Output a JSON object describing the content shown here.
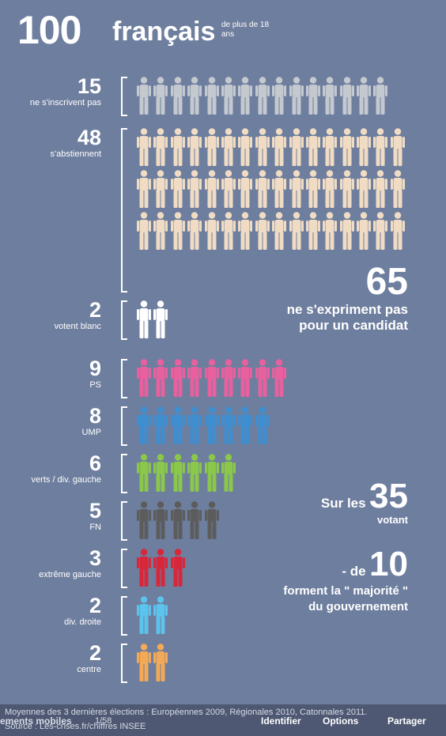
{
  "title": {
    "number": "100",
    "word": "français",
    "subtitle": "de plus de 18 ans"
  },
  "groups": [
    {
      "count": "15",
      "label": "ne s'inscrivent pas",
      "n": 15,
      "color": "#c4c8cf"
    },
    {
      "count": "48",
      "label": "s'abstiennent",
      "n": 48,
      "color": "#f0dcc4"
    },
    {
      "count": "2",
      "label": "votent blanc",
      "n": 2,
      "color": "#ffffff"
    },
    {
      "count": "9",
      "label": "PS",
      "n": 9,
      "color": "#e8609e"
    },
    {
      "count": "8",
      "label": "UMP",
      "n": 8,
      "color": "#3f8ed0"
    },
    {
      "count": "6",
      "label": "verts / div. gauche",
      "n": 6,
      "color": "#8ac74a"
    },
    {
      "count": "5",
      "label": "FN",
      "n": 5,
      "color": "#5c5c5c"
    },
    {
      "count": "3",
      "label": "extrême gauche",
      "n": 3,
      "color": "#d8263a"
    },
    {
      "count": "2",
      "label": "div. droite",
      "n": 2,
      "color": "#5cc3ec"
    },
    {
      "count": "2",
      "label": "centre",
      "n": 2,
      "color": "#f4a956"
    }
  ],
  "side": {
    "s65": {
      "number": "65",
      "text": [
        "ne s'expriment pas",
        "pour un candidat"
      ]
    },
    "s35": {
      "prefix": "Sur les",
      "number": "35",
      "text": "votant"
    },
    "s10": {
      "prefix": "- de",
      "number": "10",
      "text": [
        "forment la \" majorité \"",
        "du gouvernement"
      ]
    }
  },
  "footer": {
    "note": "Moyennes des 3 dernières élections : Européennes 2009, Régionales 2010, Catonnales 2011.",
    "source": "Source : Les-crises.fr/chiffres INSEE",
    "mobile": "ements mobiles",
    "page": "1/58",
    "nav": [
      "Identifier",
      "Options",
      "Partager"
    ]
  }
}
